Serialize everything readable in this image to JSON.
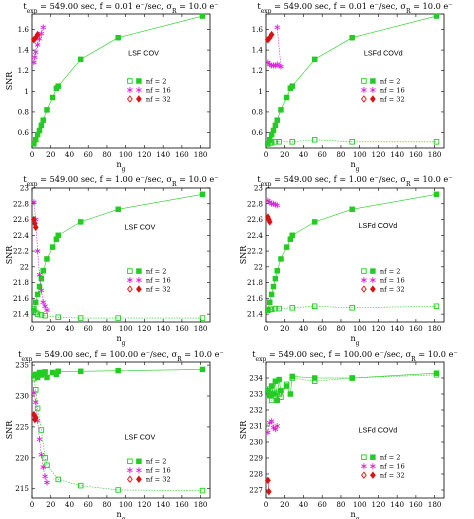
{
  "colors": {
    "nf2": "#22cc22",
    "nf16": "#dd22dd",
    "nf32": "#dd1111"
  },
  "chart_data": [
    {
      "type": "scatter",
      "title": "t_exp = 549.00 sec,  f = 0.01 e⁻/sec,  σ_R = 10.0 e⁻",
      "method_label": "LSF COV",
      "xlabel": "n_g",
      "ylabel": "SNR",
      "xlim": [
        0,
        190
      ],
      "ylim": [
        0.45,
        1.75
      ],
      "xticks": [
        0,
        20,
        40,
        60,
        80,
        100,
        120,
        140,
        160,
        180
      ],
      "yticks": [
        0.6,
        0.8,
        1.0,
        1.2,
        1.4,
        1.6
      ],
      "ytick_labels": [
        "0.6",
        "0.8",
        "1",
        "1.2",
        "1.4",
        "1.6"
      ],
      "series": [
        {
          "name": "nf = 2",
          "marker": "square",
          "filled": false,
          "values": []
        },
        {
          "name": "",
          "marker": "square",
          "filled": true,
          "x": [
            2,
            4,
            6,
            8,
            10,
            12,
            16,
            22,
            26,
            28,
            52,
            92,
            182
          ],
          "y": [
            0.49,
            0.53,
            0.58,
            0.62,
            0.67,
            0.72,
            0.82,
            0.94,
            1.03,
            1.05,
            1.31,
            1.52,
            1.73
          ]
        },
        {
          "name": "nf = 16",
          "marker": "star",
          "filled": false,
          "x": [
            2,
            3,
            4,
            6,
            8,
            10,
            12
          ],
          "y": [
            1.28,
            1.33,
            1.38,
            1.45,
            1.51,
            1.56,
            1.62
          ]
        },
        {
          "name": "nf = 32",
          "marker": "diamond",
          "filled": true,
          "x": [
            2,
            4,
            6
          ],
          "y": [
            1.5,
            1.52,
            1.55
          ]
        }
      ]
    },
    {
      "type": "scatter",
      "title": "t_exp = 549.00 sec,  f = 0.01 e⁻/sec,  σ_R = 10.0 e⁻",
      "method_label": "LSFd COVd",
      "xlabel": "n_g",
      "ylabel": "",
      "xlim": [
        0,
        190
      ],
      "ylim": [
        0.45,
        1.75
      ],
      "xticks": [
        0,
        20,
        40,
        60,
        80,
        100,
        120,
        140,
        160,
        180
      ],
      "yticks": [
        0.6,
        0.8,
        1.0,
        1.2,
        1.4,
        1.6
      ],
      "ytick_labels": [
        "0.6",
        "0.8",
        "1",
        "1.2",
        "1.4",
        "1.6"
      ],
      "series": [
        {
          "name": "nf = 2",
          "marker": "square",
          "filled": false,
          "x": [
            2,
            4,
            6,
            10,
            14,
            28,
            52,
            92,
            182
          ],
          "y": [
            0.49,
            0.5,
            0.5,
            0.51,
            0.51,
            0.51,
            0.53,
            0.51,
            0.51
          ]
        },
        {
          "name": "",
          "marker": "square",
          "filled": true,
          "x": [
            2,
            4,
            6,
            8,
            10,
            12,
            16,
            22,
            26,
            28,
            52,
            92,
            182
          ],
          "y": [
            0.49,
            0.53,
            0.58,
            0.62,
            0.67,
            0.72,
            0.82,
            0.94,
            1.03,
            1.05,
            1.31,
            1.52,
            1.73
          ]
        },
        {
          "name": "nf = 16",
          "marker": "star",
          "filled": false,
          "x": [
            2,
            4,
            6,
            8,
            10,
            12,
            14,
            16,
            12
          ],
          "y": [
            1.28,
            1.26,
            1.25,
            1.25,
            1.25,
            1.26,
            1.25,
            1.24,
            1.62
          ]
        },
        {
          "name": "nf = 32",
          "marker": "diamond",
          "filled": true,
          "x": [
            2,
            4,
            6
          ],
          "y": [
            1.5,
            1.52,
            1.55
          ]
        }
      ]
    },
    {
      "type": "scatter",
      "title": "t_exp = 549.00 sec,  f = 1.00 e⁻/sec,  σ_R = 10.0 e⁻",
      "method_label": "LSF COV",
      "xlabel": "n_g",
      "ylabel": "SNR",
      "xlim": [
        0,
        190
      ],
      "ylim": [
        21.3,
        23.0
      ],
      "xticks": [
        0,
        20,
        40,
        60,
        80,
        100,
        120,
        140,
        160,
        180
      ],
      "yticks": [
        21.4,
        21.6,
        21.8,
        22.0,
        22.2,
        22.4,
        22.6,
        22.8,
        23.0
      ],
      "ytick_labels": [
        "21.4",
        "21.6",
        "21.8",
        "22",
        "22.2",
        "22.4",
        "22.6",
        "22.8",
        "23"
      ],
      "series": [
        {
          "name": "nf = 2",
          "marker": "square",
          "filled": false,
          "x": [
            2,
            4,
            6,
            10,
            14,
            28,
            52,
            92,
            182
          ],
          "y": [
            21.47,
            21.42,
            21.4,
            21.39,
            21.38,
            21.36,
            21.35,
            21.35,
            21.35
          ]
        },
        {
          "name": "",
          "marker": "square",
          "filled": true,
          "x": [
            2,
            4,
            6,
            8,
            10,
            12,
            16,
            22,
            26,
            28,
            52,
            92,
            182
          ],
          "y": [
            21.45,
            21.55,
            21.65,
            21.75,
            21.85,
            21.95,
            22.1,
            22.25,
            22.35,
            22.4,
            22.57,
            22.73,
            22.92
          ]
        },
        {
          "name": "nf = 16",
          "marker": "star",
          "filled": false,
          "x": [
            2,
            4,
            6,
            8,
            10,
            12,
            14,
            16
          ],
          "y": [
            22.82,
            22.6,
            22.2,
            21.9,
            21.7,
            21.55,
            21.5,
            21.45
          ]
        },
        {
          "name": "nf = 32",
          "marker": "diamond",
          "filled": true,
          "x": [
            2,
            3,
            4
          ],
          "y": [
            22.6,
            22.55,
            22.5
          ]
        }
      ]
    },
    {
      "type": "scatter",
      "title": "t_exp = 549.00 sec,  f = 1.00 e⁻/sec,  σ_R = 10.0 e⁻",
      "method_label": "LSFd COVd",
      "xlabel": "n_g",
      "ylabel": "SNR",
      "xlim": [
        0,
        190
      ],
      "ylim": [
        21.3,
        23.0
      ],
      "xticks": [
        0,
        20,
        40,
        60,
        80,
        100,
        120,
        140,
        160,
        180
      ],
      "yticks": [
        21.4,
        21.6,
        21.8,
        22.0,
        22.2,
        22.4,
        22.6,
        22.8,
        23.0
      ],
      "ytick_labels": [
        "21.4",
        "21.6",
        "21.8",
        "22",
        "22.2",
        "22.4",
        "22.6",
        "22.8",
        "23"
      ],
      "series": [
        {
          "name": "nf = 2",
          "marker": "square",
          "filled": false,
          "x": [
            2,
            4,
            6,
            10,
            14,
            28,
            52,
            92,
            182
          ],
          "y": [
            21.45,
            21.46,
            21.46,
            21.47,
            21.47,
            21.48,
            21.5,
            21.48,
            21.5
          ]
        },
        {
          "name": "",
          "marker": "square",
          "filled": true,
          "x": [
            2,
            4,
            6,
            8,
            10,
            12,
            16,
            22,
            26,
            28,
            52,
            92,
            182
          ],
          "y": [
            21.45,
            21.55,
            21.65,
            21.75,
            21.85,
            21.95,
            22.1,
            22.25,
            22.35,
            22.4,
            22.57,
            22.73,
            22.92
          ]
        },
        {
          "name": "nf = 16",
          "marker": "star",
          "filled": false,
          "x": [
            2,
            4,
            6,
            8,
            10,
            12
          ],
          "y": [
            22.84,
            22.82,
            22.8,
            22.8,
            22.79,
            22.78
          ]
        },
        {
          "name": "nf = 32",
          "marker": "diamond",
          "filled": true,
          "x": [
            2,
            3,
            4
          ],
          "y": [
            22.63,
            22.6,
            22.57
          ]
        }
      ]
    },
    {
      "type": "scatter",
      "title": "t_exp = 549.00 sec,  f = 100.00 e⁻/sec,  σ_R = 10.0 e⁻",
      "method_label": "LSF COV",
      "xlabel": "n_g",
      "ylabel": "SNR",
      "xlim": [
        0,
        190
      ],
      "ylim": [
        213.5,
        235.5
      ],
      "xticks": [
        0,
        20,
        40,
        60,
        80,
        100,
        120,
        140,
        160,
        180
      ],
      "yticks": [
        215,
        220,
        225,
        230,
        235
      ],
      "ytick_labels": [
        "215",
        "220",
        "225",
        "230",
        "235"
      ],
      "series": [
        {
          "name": "nf = 2",
          "marker": "square",
          "filled": false,
          "x": [
            2,
            4,
            6,
            10,
            14,
            16,
            28,
            52,
            92,
            182
          ],
          "y": [
            232.8,
            231.0,
            228.0,
            224.5,
            220.0,
            218.8,
            216.5,
            215.5,
            214.8,
            214.7
          ]
        },
        {
          "name": "",
          "marker": "square",
          "filled": true,
          "x": [
            2,
            4,
            6,
            8,
            10,
            12,
            14,
            16,
            22,
            26,
            28,
            52,
            92,
            182
          ],
          "y": [
            233.3,
            233.5,
            233.0,
            233.8,
            233.4,
            233.7,
            233.9,
            233.0,
            233.8,
            233.5,
            234.0,
            234.0,
            234.1,
            234.3
          ]
        },
        {
          "name": "nf = 16",
          "marker": "star",
          "filled": false,
          "x": [
            2,
            4,
            6,
            8,
            10,
            12,
            14,
            16
          ],
          "y": [
            230.5,
            229.0,
            226.0,
            223.0,
            220.5,
            218.5,
            217.0,
            216.0
          ]
        },
        {
          "name": "nf = 32",
          "marker": "diamond",
          "filled": true,
          "x": [
            2,
            3,
            4
          ],
          "y": [
            227.0,
            226.2,
            226.5
          ]
        }
      ]
    },
    {
      "type": "scatter",
      "title": "t_exp = 549.00 sec,  f = 100.00 e⁻/sec,  σ_R = 10.0 e⁻",
      "method_label": "LSFd COVd",
      "xlabel": "n_g",
      "ylabel": "SNR",
      "xlim": [
        0,
        190
      ],
      "ylim": [
        226.5,
        235.0
      ],
      "xticks": [
        0,
        20,
        40,
        60,
        80,
        100,
        120,
        140,
        160,
        180
      ],
      "yticks": [
        227,
        228,
        229,
        230,
        231,
        232,
        233,
        234
      ],
      "ytick_labels": [
        "227",
        "228",
        "229",
        "230",
        "231",
        "232",
        "233",
        "234"
      ],
      "series": [
        {
          "name": "nf = 2",
          "marker": "square",
          "filled": false,
          "x": [
            2,
            4,
            6,
            10,
            12,
            14,
            16,
            22,
            28,
            52,
            92,
            182
          ],
          "y": [
            233.0,
            233.3,
            232.6,
            232.9,
            233.1,
            233.0,
            232.8,
            233.6,
            234.0,
            233.8,
            234.0,
            234.2
          ]
        },
        {
          "name": "",
          "marker": "square",
          "filled": true,
          "x": [
            2,
            4,
            6,
            8,
            10,
            12,
            14,
            16,
            22,
            26,
            28,
            52,
            92,
            182
          ],
          "y": [
            233.2,
            232.9,
            233.5,
            233.0,
            233.8,
            232.6,
            233.9,
            233.2,
            233.5,
            233.0,
            234.1,
            234.0,
            234.0,
            234.3
          ]
        },
        {
          "name": "nf = 16",
          "marker": "star",
          "filled": false,
          "x": [
            2,
            4,
            6,
            8,
            10,
            12
          ],
          "y": [
            230.6,
            231.2,
            231.3,
            230.9,
            230.8,
            231.0
          ]
        },
        {
          "name": "nf = 32",
          "marker": "diamond",
          "filled": true,
          "x": [
            2,
            3
          ],
          "y": [
            227.6,
            226.9
          ]
        }
      ]
    }
  ]
}
